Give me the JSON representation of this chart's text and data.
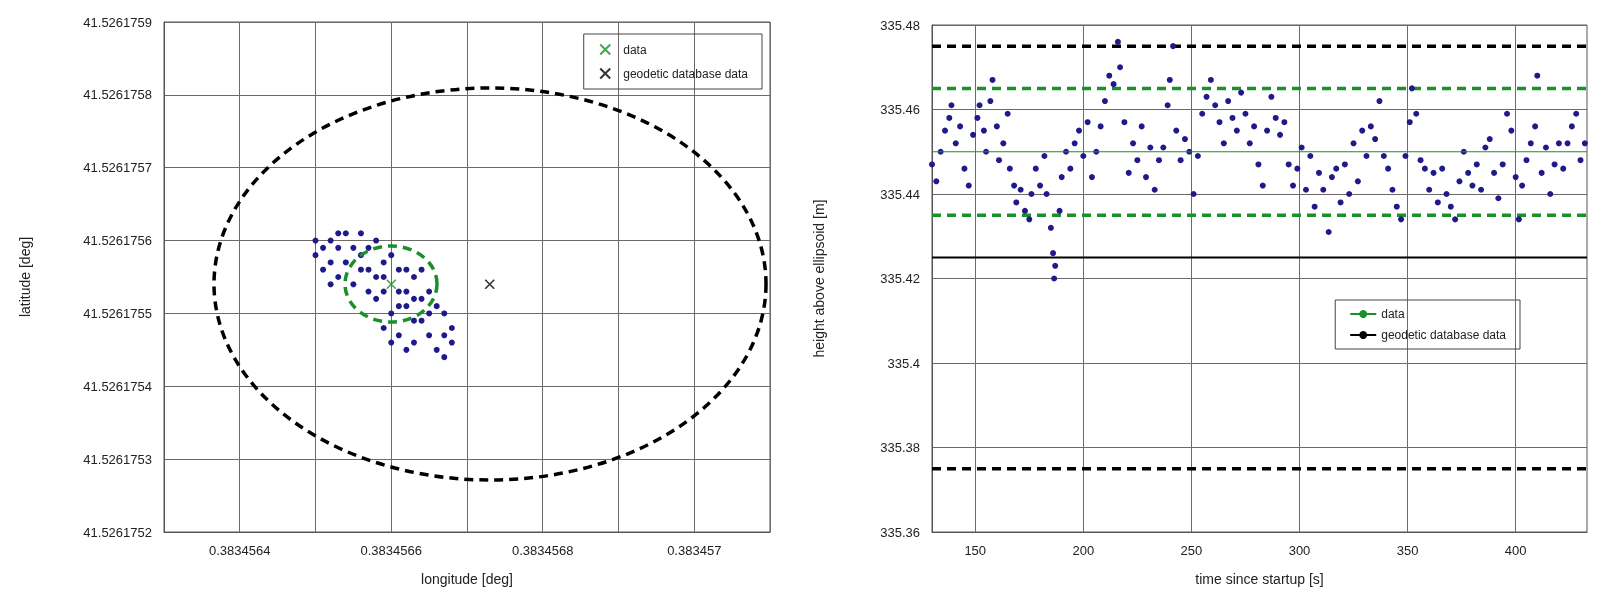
{
  "chart_data": [
    {
      "type": "scatter",
      "xlabel": "longitude [deg]",
      "ylabel": "latitude [deg]",
      "xlim": [
        0.3834563,
        0.3834571
      ],
      "xticks": [
        {
          "value": 0.3834563,
          "label": null
        },
        0.3834564,
        {
          "value": 0.3834565,
          "label": null
        },
        0.3834566,
        {
          "value": 0.3834567,
          "label": null
        },
        0.3834568,
        {
          "value": 0.3834569,
          "label": null
        },
        0.383457,
        {
          "value": 0.3834571,
          "label": null
        }
      ],
      "ylim": [
        41.5261752,
        41.5261759
      ],
      "yticks": [
        41.5261752,
        41.5261753,
        41.5261754,
        41.5261755,
        41.5261756,
        41.5261757,
        41.5261758,
        41.5261759
      ],
      "grid": true,
      "legend": "top right",
      "series": [
        {
          "color": "#1f1a8a",
          "marker": "circle",
          "x": [
            0.38345658,
            0.38345662,
            0.38345656,
            0.38345664,
            0.38345654,
            0.38345666,
            0.38345657,
            0.38345663,
            0.38345655,
            0.38345665,
            0.38345659,
            0.38345661,
            0.38345653,
            0.38345667,
            0.38345658,
            0.38345662,
            0.38345656,
            0.38345664,
            0.3834566,
            0.3834566,
            0.38345652,
            0.38345668,
            0.38345657,
            0.38345663,
            0.38345655,
            0.38345665,
            0.38345653,
            0.38345667,
            0.38345651,
            0.38345651,
            0.38345668,
            0.38345652,
            0.38345654,
            0.38345656,
            0.38345666,
            0.3834565,
            0.3834565,
            0.38345659,
            0.38345661,
            0.38345663,
            0.38345658,
            0.38345652,
            0.38345664,
            0.38345659,
            0.38345661,
            0.38345657,
            0.38345663,
            0.38345665,
            0.3834566,
            0.38345662,
            0.38345667,
            0.38345653,
            0.38345661,
            0.38345659,
            0.38345662
          ],
          "values": [
            41.52617555,
            41.52617553,
            41.52617556,
            41.52617552,
            41.52617557,
            41.52617551,
            41.52617553,
            41.52617555,
            41.52617554,
            41.52617553,
            41.52617557,
            41.52617551,
            41.52617555,
            41.5261755,
            41.52617552,
            41.52617556,
            41.52617558,
            41.52617549,
            41.52617558,
            41.5261755,
            41.52617557,
            41.52617548,
            41.52617559,
            41.52617549,
            41.52617559,
            41.52617547,
            41.52617559,
            41.52617547,
            41.52617559,
            41.52617556,
            41.52617546,
            41.5261756,
            41.52617561,
            41.52617561,
            41.52617545,
            41.5261756,
            41.52617558,
            41.52617548,
            41.52617547,
            41.52617546,
            41.5261756,
            41.52617554,
            41.52617556,
            41.52617555,
            41.52617556,
            41.52617556,
            41.52617552,
            41.5261755,
            41.52617546,
            41.52617545,
            41.52617544,
            41.52617561,
            41.52617553,
            41.52617553,
            41.52617551
          ]
        },
        {
          "name": "data",
          "color": "#1a8f2a",
          "marker": "cross",
          "x": [
            0.3834566
          ],
          "values": [
            41.52617554
          ]
        },
        {
          "name": "geodetic database data",
          "color": "#000000",
          "marker": "cross",
          "x": [
            0.38345673
          ],
          "values": [
            41.52617554
          ]
        }
      ]
    },
    {
      "type": "scatter",
      "xlabel": "time since startup [s]",
      "ylabel": "height above ellipsoid [m]",
      "xlim": [
        130,
        433
      ],
      "xticks": [
        150,
        200,
        250,
        300,
        350,
        400
      ],
      "ylim": [
        335.36,
        335.48
      ],
      "yticks": [
        335.36,
        335.38,
        335.4,
        335.42,
        335.44,
        335.46,
        335.48
      ],
      "grid": true,
      "legend": "right",
      "ref_lines": [
        {
          "axis": "y",
          "value": 335.475,
          "color": "#000000",
          "line_style": "dashed"
        },
        {
          "axis": "y",
          "value": 335.465,
          "color": "#1a8f2a",
          "line_style": "dashed"
        },
        {
          "axis": "y",
          "value": 335.435,
          "color": "#1a8f2a",
          "line_style": "dashed"
        },
        {
          "axis": "y",
          "value": 335.375,
          "color": "#000000",
          "line_style": "dashed"
        }
      ],
      "series": [
        {
          "color": "#1f1a8a",
          "marker": "circle",
          "x": [
            130,
            132,
            134,
            136,
            138,
            139,
            141,
            143,
            145,
            147,
            149,
            151,
            152,
            154,
            155,
            157,
            158,
            160,
            161,
            163,
            165,
            166,
            168,
            169,
            171,
            173,
            175,
            176,
            178,
            180,
            182,
            183,
            185,
            186,
            186.5,
            187,
            189,
            190,
            192,
            194,
            196,
            198,
            200,
            202,
            204,
            206,
            208,
            210,
            212,
            214,
            216,
            217,
            219,
            221,
            223,
            225,
            227,
            229,
            231,
            233,
            235,
            237,
            239,
            240,
            241.5,
            243,
            245,
            247,
            249,
            251,
            253,
            255,
            257,
            259,
            261,
            263,
            265,
            267,
            269,
            271,
            273,
            275,
            277,
            279,
            281,
            283,
            285,
            287,
            289,
            291,
            293,
            295,
            297,
            299,
            301,
            303,
            305,
            307,
            309,
            311,
            313.5,
            315,
            317,
            319,
            321,
            323,
            325,
            327,
            329,
            331,
            333,
            335,
            337,
            339,
            341,
            343,
            345,
            347,
            349,
            351,
            352,
            354,
            356,
            358,
            360,
            362,
            364,
            366,
            368,
            370,
            372,
            374,
            376,
            378,
            380,
            382,
            384,
            386,
            388,
            390,
            392,
            394,
            396,
            398,
            400,
            401.5,
            403,
            405,
            407,
            409,
            410,
            412,
            414,
            416,
            418,
            420,
            422,
            424,
            426,
            428,
            430,
            432
          ],
          "values": [
            335.447,
            335.443,
            335.45,
            335.455,
            335.458,
            335.461,
            335.452,
            335.456,
            335.446,
            335.442,
            335.454,
            335.458,
            335.461,
            335.455,
            335.45,
            335.462,
            335.467,
            335.456,
            335.448,
            335.452,
            335.459,
            335.446,
            335.442,
            335.438,
            335.441,
            335.436,
            335.434,
            335.44,
            335.446,
            335.442,
            335.449,
            335.44,
            335.432,
            335.426,
            335.42,
            335.423,
            335.436,
            335.444,
            335.45,
            335.446,
            335.452,
            335.455,
            335.449,
            335.457,
            335.444,
            335.45,
            335.456,
            335.462,
            335.468,
            335.466,
            335.476,
            335.47,
            335.457,
            335.445,
            335.452,
            335.448,
            335.456,
            335.444,
            335.451,
            335.441,
            335.448,
            335.451,
            335.461,
            335.467,
            335.475,
            335.455,
            335.448,
            335.453,
            335.45,
            335.44,
            335.449,
            335.459,
            335.463,
            335.467,
            335.461,
            335.457,
            335.452,
            335.462,
            335.458,
            335.455,
            335.464,
            335.459,
            335.452,
            335.456,
            335.447,
            335.442,
            335.455,
            335.463,
            335.458,
            335.454,
            335.457,
            335.447,
            335.442,
            335.446,
            335.451,
            335.441,
            335.449,
            335.437,
            335.445,
            335.441,
            335.431,
            335.444,
            335.446,
            335.438,
            335.447,
            335.44,
            335.452,
            335.443,
            335.455,
            335.449,
            335.456,
            335.453,
            335.462,
            335.449,
            335.446,
            335.441,
            335.437,
            335.434,
            335.449,
            335.457,
            335.465,
            335.459,
            335.448,
            335.446,
            335.441,
            335.445,
            335.438,
            335.446,
            335.44,
            335.437,
            335.434,
            335.443,
            335.45,
            335.445,
            335.442,
            335.447,
            335.441,
            335.451,
            335.453,
            335.445,
            335.439,
            335.447,
            335.459,
            335.455,
            335.444,
            335.434,
            335.442,
            335.448,
            335.452,
            335.456,
            335.468,
            335.445,
            335.451,
            335.44,
            335.447,
            335.452,
            335.446,
            335.452,
            335.456,
            335.459,
            335.448,
            335.452
          ]
        },
        {
          "type": "line",
          "name": "data",
          "color": "#1a8f2a",
          "marker": "none",
          "line_style": "solid",
          "x": [
            130,
            433
          ],
          "values": [
            335.45,
            335.45
          ]
        },
        {
          "type": "line",
          "name": "geodetic database data",
          "color": "#000000",
          "marker": "none",
          "line_style": "solid",
          "x": [
            130,
            433
          ],
          "values": [
            335.425,
            335.425
          ]
        }
      ]
    }
  ]
}
